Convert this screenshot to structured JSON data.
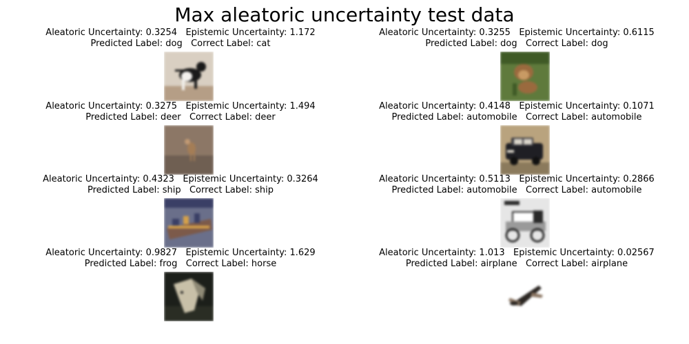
{
  "chart_data": {
    "type": "image-grid",
    "title": "Max aleatoric uncertainty test data",
    "panels": [
      {
        "aleatoric": "0.3254",
        "epistemic": "1.172",
        "predicted": "dog",
        "correct": "cat",
        "icon": "cat-thumbnail-icon",
        "palette": {
          "bg": "#d9cfc2",
          "fg": "#1a1a1a",
          "accent": "#f3f1ee",
          "floor": "#b59e86"
        }
      },
      {
        "aleatoric": "0.3255",
        "epistemic": "0.6115",
        "predicted": "dog",
        "correct": "dog",
        "icon": "dog-thumbnail-icon",
        "palette": {
          "bg": "#5f7a3c",
          "fg": "#9a6a3e",
          "accent": "#c89a64",
          "floor": "#3f5a26"
        }
      },
      {
        "aleatoric": "0.3275",
        "epistemic": "1.494",
        "predicted": "deer",
        "correct": "deer",
        "icon": "deer-thumbnail-icon",
        "palette": {
          "bg": "#8c7766",
          "fg": "#a47d56",
          "accent": "#c29a74",
          "floor": "#6f5f52"
        }
      },
      {
        "aleatoric": "0.4148",
        "epistemic": "0.1071",
        "predicted": "automobile",
        "correct": "automobile",
        "icon": "car-thumbnail-icon",
        "palette": {
          "bg": "#b9a37e",
          "fg": "#1f1f24",
          "accent": "#d9d4c9",
          "floor": "#8b7a5c"
        }
      },
      {
        "aleatoric": "0.4323",
        "epistemic": "0.3264",
        "predicted": "ship",
        "correct": "ship",
        "icon": "ship-thumbnail-icon",
        "palette": {
          "bg": "#6a6f8a",
          "fg": "#d4a04a",
          "accent": "#3a3f66",
          "floor": "#7c5a4a"
        }
      },
      {
        "aleatoric": "0.5113",
        "epistemic": "0.2866",
        "predicted": "automobile",
        "correct": "automobile",
        "icon": "vintage-car-thumbnail-icon",
        "palette": {
          "bg": "#e6e6e6",
          "fg": "#2a2a2a",
          "accent": "#ffffff",
          "floor": "#9a9a9a"
        }
      },
      {
        "aleatoric": "0.9827",
        "epistemic": "1.629",
        "predicted": "frog",
        "correct": "horse",
        "icon": "horse-thumbnail-icon",
        "palette": {
          "bg": "#1c1f1a",
          "fg": "#c8c0a8",
          "accent": "#8f8a76",
          "floor": "#2a2d24"
        }
      },
      {
        "aleatoric": "1.013",
        "epistemic": "0.02567",
        "predicted": "airplane",
        "correct": "airplane",
        "icon": "airplane-thumbnail-icon",
        "palette": {
          "bg": "#ffffff",
          "fg": "#2b2622",
          "accent": "#8a7562",
          "floor": "#ffffff"
        }
      }
    ]
  }
}
